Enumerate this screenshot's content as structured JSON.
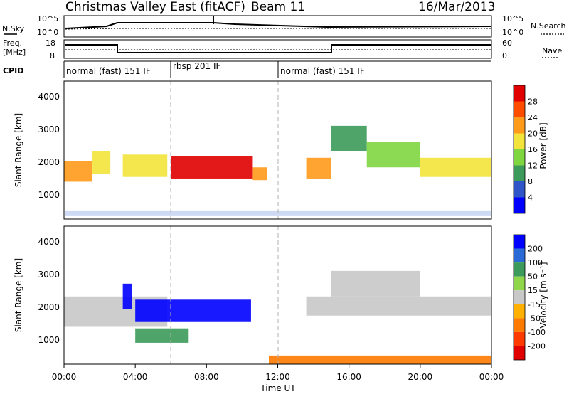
{
  "header": {
    "station": "Christmas Valley East (fitACF)",
    "beam": "Beam 11",
    "date": "16/Mar/2013"
  },
  "strip_labels": {
    "nsky": "N.Sky",
    "nsearch": "N.Search",
    "freq_line1": "Freq.",
    "freq_line2": "[MHz]",
    "nave": "Nave",
    "cpid": "CPID",
    "noise_ticks": [
      "10^5",
      "10^0"
    ],
    "freq_ticks": [
      "18",
      "8"
    ],
    "nave_ticks": [
      "60",
      "0"
    ]
  },
  "cpid_segments": [
    {
      "label": "normal (fast) 151 IF",
      "start_hour": 0,
      "end_hour": 6
    },
    {
      "label": "rbsp 201 IF",
      "start_hour": 6,
      "end_hour": 12
    },
    {
      "label": "normal (fast) 151 IF",
      "start_hour": 12,
      "end_hour": 24
    }
  ],
  "x_axis": {
    "label": "Time UT",
    "ticks": [
      "00:00",
      "04:00",
      "08:00",
      "12:00",
      "16:00",
      "20:00",
      "00:00"
    ]
  },
  "panels": {
    "power": {
      "ylabel": "Slant Range [km]",
      "yticks": [
        "1000",
        "2000",
        "3000",
        "4000"
      ],
      "cbar_label": "Power [dB]",
      "cbar_ticks": [
        "4",
        "8",
        "12",
        "16",
        "20",
        "24",
        "28"
      ],
      "cbar_colors": [
        "#0000ff",
        "#2f55c8",
        "#3c9a5a",
        "#7fd640",
        "#f2e43a",
        "#ff9a1a",
        "#ff4d00",
        "#e00000"
      ]
    },
    "velocity": {
      "ylabel": "Slant Range [km]",
      "yticks": [
        "1000",
        "2000",
        "3000",
        "4000"
      ],
      "cbar_label": "Velocity [m s⁻¹]",
      "cbar_ticks": [
        "200",
        "100",
        "50",
        "15",
        "-15",
        "-50",
        "-100",
        "-200"
      ],
      "cbar_colors": [
        "#0000ff",
        "#2a6ad6",
        "#3c9a5a",
        "#8fd64a",
        "#c8c8c8",
        "#ffb000",
        "#ff7a00",
        "#ff3a00",
        "#e00000"
      ]
    }
  },
  "chart_data": {
    "type": "heatmap",
    "x_range_hours": [
      0,
      24
    ],
    "y_range_km": [
      180,
      4500
    ],
    "power_bands": [
      {
        "t_start": 0.0,
        "t_end": 1.6,
        "range_km": [
          1350,
          2000
        ],
        "power_db": 24
      },
      {
        "t_start": 1.6,
        "t_end": 2.6,
        "range_km": [
          1600,
          2300
        ],
        "power_db": 20
      },
      {
        "t_start": 3.3,
        "t_end": 5.8,
        "range_km": [
          1500,
          2200
        ],
        "power_db": 18
      },
      {
        "t_start": 6.0,
        "t_end": 10.6,
        "range_km": [
          1450,
          2150
        ],
        "power_db": 30
      },
      {
        "t_start": 10.6,
        "t_end": 11.4,
        "range_km": [
          1400,
          1800
        ],
        "power_db": 22
      },
      {
        "t_start": 13.6,
        "t_end": 15.0,
        "range_km": [
          1450,
          2100
        ],
        "power_db": 22
      },
      {
        "t_start": 15.0,
        "t_end": 17.0,
        "range_km": [
          2300,
          3100
        ],
        "power_db": 12
      },
      {
        "t_start": 17.0,
        "t_end": 20.0,
        "range_km": [
          1800,
          2600
        ],
        "power_db": 14
      },
      {
        "t_start": 20.0,
        "t_end": 24.0,
        "range_km": [
          1500,
          2100
        ],
        "power_db": 18
      }
    ],
    "velocity_bands": [
      {
        "t_start": 0.0,
        "t_end": 5.8,
        "range_km": [
          1350,
          2300
        ],
        "velocity": 0
      },
      {
        "t_start": 3.3,
        "t_end": 3.8,
        "range_km": [
          1900,
          2700
        ],
        "velocity": 220
      },
      {
        "t_start": 4.0,
        "t_end": 10.5,
        "range_km": [
          1500,
          2200
        ],
        "velocity": 200
      },
      {
        "t_start": 4.0,
        "t_end": 7.0,
        "range_km": [
          850,
          1300
        ],
        "velocity": 60
      },
      {
        "t_start": 13.6,
        "t_end": 24.0,
        "range_km": [
          1700,
          2300
        ],
        "velocity": 0
      },
      {
        "t_start": 15.0,
        "t_end": 20.0,
        "range_km": [
          2300,
          3100
        ],
        "velocity": 0
      },
      {
        "t_start": 11.5,
        "t_end": 24.0,
        "range_km": [
          180,
          450
        ],
        "velocity": -60
      }
    ]
  }
}
